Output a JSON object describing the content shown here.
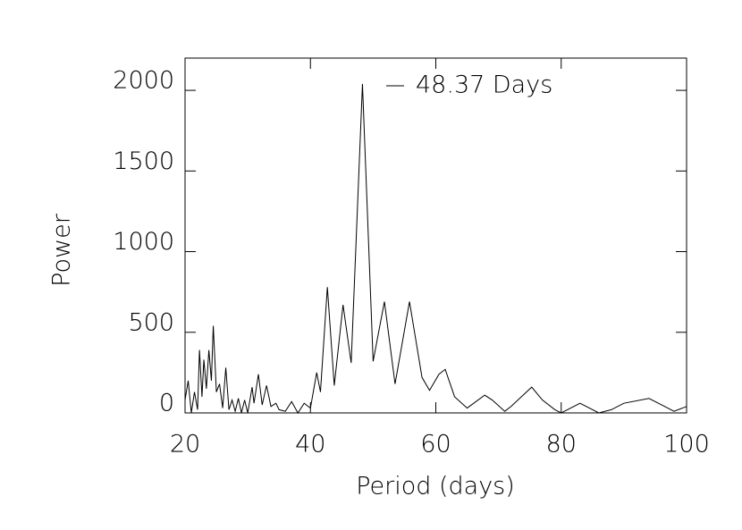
{
  "chart_data": {
    "type": "line",
    "x_label": "Period (days)",
    "y_label": "Power",
    "xlim": [
      20,
      100
    ],
    "xticks": [
      20,
      40,
      60,
      80,
      100
    ],
    "ylim": [
      0,
      2200
    ],
    "yticks": [
      0,
      500,
      1000,
      1500,
      2000
    ],
    "legend": "top",
    "series": [
      {
        "name": "48.37 Days",
        "color": "#000000",
        "x": [
          20,
          20.5,
          21,
          21.5,
          22,
          22.3,
          22.7,
          23,
          23.4,
          23.8,
          24.2,
          24.5,
          25,
          25.5,
          26,
          26.5,
          27,
          27.5,
          28,
          28.5,
          29,
          29.5,
          30,
          30.7,
          31,
          31.7,
          32.3,
          33,
          33.7,
          34.5,
          35,
          36,
          37,
          38,
          39,
          40,
          41,
          41.6,
          42.7,
          43.8,
          45.2,
          46.5,
          48.3,
          50,
          51.8,
          53.5,
          55.8,
          57.8,
          59,
          60.5,
          61.5,
          63,
          65,
          67.8,
          69,
          71,
          72,
          75.3,
          77,
          79,
          80,
          83,
          86,
          88,
          90,
          94,
          96,
          98,
          100
        ],
        "values": [
          80,
          200,
          0,
          130,
          20,
          390,
          100,
          330,
          150,
          390,
          200,
          540,
          130,
          180,
          30,
          280,
          20,
          80,
          10,
          90,
          0,
          80,
          0,
          160,
          60,
          240,
          50,
          170,
          40,
          60,
          20,
          10,
          70,
          0,
          60,
          30,
          250,
          130,
          780,
          170,
          670,
          310,
          2040,
          320,
          690,
          180,
          690,
          220,
          140,
          240,
          270,
          100,
          30,
          110,
          80,
          10,
          40,
          160,
          80,
          20,
          0,
          60,
          0,
          20,
          60,
          90,
          50,
          10,
          40
        ]
      }
    ]
  }
}
